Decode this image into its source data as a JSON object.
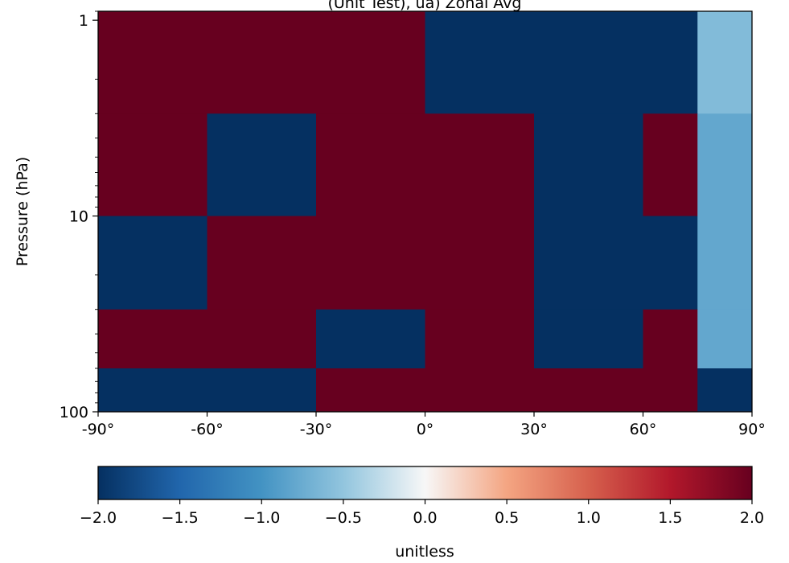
{
  "chart_data": {
    "type": "heatmap",
    "title": "(Unit Test), ua) Zonal Avg",
    "xlabel": "",
    "ylabel": "Pressure (hPa)",
    "xlim": [
      -90,
      90
    ],
    "ylim": [
      100,
      0.9
    ],
    "yscale": "log",
    "x_ticks": [
      -90,
      -60,
      -30,
      0,
      30,
      60,
      90
    ],
    "x_tick_labels": [
      "-90°",
      "-60°",
      "-30°",
      "0°",
      "30°",
      "60°",
      "90°"
    ],
    "y_ticks": [
      1,
      10,
      100
    ],
    "y_tick_labels": [
      "1",
      "10",
      "100"
    ],
    "colormap": "RdBu_r",
    "colorbar": {
      "label": "unitless",
      "min": -2.0,
      "max": 2.0,
      "ticks": [
        -2.0,
        -1.5,
        -1.0,
        -0.5,
        0.0,
        0.5,
        1.0,
        1.5,
        2.0
      ],
      "tick_labels": [
        "−2.0",
        "−1.5",
        "−1.0",
        "−0.5",
        "0.0",
        "0.5",
        "1.0",
        "1.5",
        "2.0"
      ],
      "colors": [
        "#053061",
        "#2166ac",
        "#4393c3",
        "#92c5de",
        "#f7f7f7",
        "#f4a582",
        "#d6604d",
        "#b2182b",
        "#67001f"
      ]
    },
    "lat_edges": [
      -90,
      -60,
      -30,
      0,
      30,
      60,
      75,
      90
    ],
    "pressure_edges": [
      0.9,
      3,
      10,
      30,
      60,
      100
    ],
    "values": [
      [
        2.0,
        2.0,
        2.0,
        -2.0,
        -2.0,
        -2.0,
        -0.6
      ],
      [
        2.0,
        -2.0,
        2.0,
        2.0,
        -2.0,
        2.0,
        -0.8
      ],
      [
        -2.0,
        2.0,
        2.0,
        2.0,
        -2.0,
        -2.0,
        -0.8
      ],
      [
        2.0,
        2.0,
        -2.0,
        2.0,
        -2.0,
        2.0,
        -0.8
      ],
      [
        -2.0,
        -2.0,
        2.0,
        2.0,
        2.0,
        2.0,
        -2.0
      ]
    ]
  }
}
